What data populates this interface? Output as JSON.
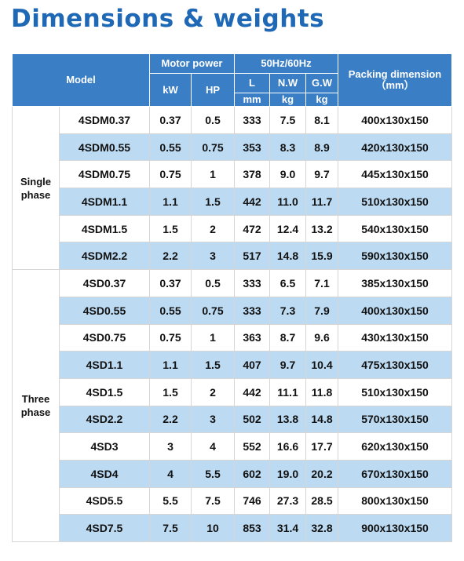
{
  "title": "Dimensions & weights",
  "header": {
    "model": "Model",
    "motor_power": "Motor power",
    "kw": "kW",
    "hp": "HP",
    "freq": "50Hz/60Hz",
    "l": "L",
    "nw": "N.W",
    "gw": "G.W",
    "l_unit": "mm",
    "nw_unit": "kg",
    "gw_unit": "kg",
    "packing": "Packing dimension",
    "packing_unit": "（mm）"
  },
  "groups": [
    {
      "phase": "Single phase",
      "rows": [
        [
          "4SDM0.37",
          "0.37",
          "0.5",
          "333",
          "7.5",
          "8.1",
          "400x130x150"
        ],
        [
          "4SDM0.55",
          "0.55",
          "0.75",
          "353",
          "8.3",
          "8.9",
          "420x130x150"
        ],
        [
          "4SDM0.75",
          "0.75",
          "1",
          "378",
          "9.0",
          "9.7",
          "445x130x150"
        ],
        [
          "4SDM1.1",
          "1.1",
          "1.5",
          "442",
          "11.0",
          "11.7",
          "510x130x150"
        ],
        [
          "4SDM1.5",
          "1.5",
          "2",
          "472",
          "12.4",
          "13.2",
          "540x130x150"
        ],
        [
          "4SDM2.2",
          "2.2",
          "3",
          "517",
          "14.8",
          "15.9",
          "590x130x150"
        ]
      ]
    },
    {
      "phase": "Three phase",
      "rows": [
        [
          "4SD0.37",
          "0.37",
          "0.5",
          "333",
          "6.5",
          "7.1",
          "385x130x150"
        ],
        [
          "4SD0.55",
          "0.55",
          "0.75",
          "333",
          "7.3",
          "7.9",
          "400x130x150"
        ],
        [
          "4SD0.75",
          "0.75",
          "1",
          "363",
          "8.7",
          "9.6",
          "430x130x150"
        ],
        [
          "4SD1.1",
          "1.1",
          "1.5",
          "407",
          "9.7",
          "10.4",
          "475x130x150"
        ],
        [
          "4SD1.5",
          "1.5",
          "2",
          "442",
          "11.1",
          "11.8",
          "510x130x150"
        ],
        [
          "4SD2.2",
          "2.2",
          "3",
          "502",
          "13.8",
          "14.8",
          "570x130x150"
        ],
        [
          "4SD3",
          "3",
          "4",
          "552",
          "16.6",
          "17.7",
          "620x130x150"
        ],
        [
          "4SD4",
          "4",
          "5.5",
          "602",
          "19.0",
          "20.2",
          "670x130x150"
        ],
        [
          "4SD5.5",
          "5.5",
          "7.5",
          "746",
          "27.3",
          "28.5",
          "800x130x150"
        ],
        [
          "4SD7.5",
          "7.5",
          "10",
          "853",
          "31.4",
          "32.8",
          "900x130x150"
        ]
      ]
    }
  ]
}
